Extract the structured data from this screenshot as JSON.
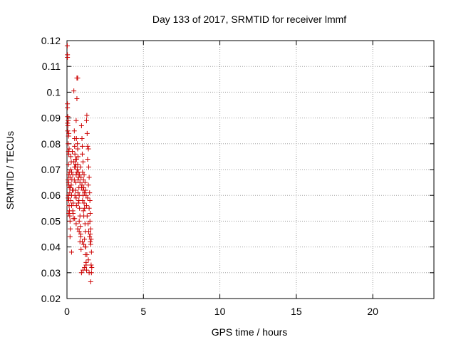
{
  "chart_data": {
    "type": "scatter",
    "title": "Day 133 of 2017, SRMTID for receiver lmmf",
    "xlabel": "GPS time / hours",
    "ylabel": "SRMTID / TECUs",
    "xlim": [
      0,
      24
    ],
    "ylim": [
      0.02,
      0.12
    ],
    "xticks": [
      0,
      5,
      10,
      15,
      20
    ],
    "yticks": [
      0.02,
      0.03,
      0.04,
      0.05,
      0.06,
      0.07,
      0.08,
      0.09,
      0.1,
      0.11,
      0.12
    ],
    "xtick_labels": [
      "0",
      "5",
      "10",
      "15",
      "20"
    ],
    "ytick_labels": [
      "0.02",
      "0.03",
      "0.04",
      "0.05",
      "0.06",
      "0.07",
      "0.08",
      "0.09",
      "0.1",
      "0.11",
      "0.12"
    ],
    "grid": true,
    "marker": "plus",
    "marker_color": "#cc0000",
    "series": [
      {
        "points": [
          [
            0.02,
            0.118
          ],
          [
            0.03,
            0.1145
          ],
          [
            0.03,
            0.1135
          ],
          [
            0.03,
            0.0955
          ],
          [
            0.03,
            0.094
          ],
          [
            0.05,
            0.0905
          ],
          [
            0.04,
            0.088
          ],
          [
            0.06,
            0.087
          ],
          [
            0.08,
            0.089
          ],
          [
            0.05,
            0.085
          ],
          [
            0.1,
            0.083
          ],
          [
            0.12,
            0.084
          ],
          [
            0.08,
            0.08
          ],
          [
            0.1,
            0.077
          ],
          [
            0.12,
            0.076
          ],
          [
            0.14,
            0.078
          ],
          [
            0.1,
            0.072
          ],
          [
            0.12,
            0.068
          ],
          [
            0.08,
            0.066
          ],
          [
            0.1,
            0.065
          ],
          [
            0.12,
            0.064
          ],
          [
            0.15,
            0.063
          ],
          [
            0.1,
            0.06
          ],
          [
            0.12,
            0.058
          ],
          [
            0.08,
            0.059
          ],
          [
            0.14,
            0.056
          ],
          [
            0.12,
            0.053
          ],
          [
            0.16,
            0.054
          ],
          [
            0.18,
            0.052
          ],
          [
            0.2,
            0.05
          ],
          [
            0.22,
            0.047
          ],
          [
            0.2,
            0.044
          ],
          [
            0.3,
            0.038
          ],
          [
            0.22,
            0.063
          ],
          [
            0.25,
            0.07
          ],
          [
            0.28,
            0.073
          ],
          [
            0.3,
            0.069
          ],
          [
            0.32,
            0.066
          ],
          [
            0.35,
            0.062
          ],
          [
            0.3,
            0.06
          ],
          [
            0.4,
            0.057
          ],
          [
            0.38,
            0.054
          ],
          [
            0.42,
            0.051
          ],
          [
            0.45,
            0.1005
          ],
          [
            0.48,
            0.085
          ],
          [
            0.5,
            0.082
          ],
          [
            0.5,
            0.079
          ],
          [
            0.52,
            0.076
          ],
          [
            0.55,
            0.074
          ],
          [
            0.5,
            0.071
          ],
          [
            0.6,
            0.068
          ],
          [
            0.58,
            0.065
          ],
          [
            0.55,
            0.062
          ],
          [
            0.6,
            0.059
          ],
          [
            0.62,
            0.056
          ],
          [
            0.65,
            0.1055
          ],
          [
            0.7,
            0.1055
          ],
          [
            0.65,
            0.0975
          ],
          [
            0.6,
            0.089
          ],
          [
            0.62,
            0.082
          ],
          [
            0.68,
            0.08
          ],
          [
            0.7,
            0.078
          ],
          [
            0.72,
            0.075
          ],
          [
            0.7,
            0.072
          ],
          [
            0.75,
            0.069
          ],
          [
            0.72,
            0.066
          ],
          [
            0.78,
            0.063
          ],
          [
            0.8,
            0.06
          ],
          [
            0.75,
            0.057
          ],
          [
            0.82,
            0.055
          ],
          [
            0.85,
            0.052
          ],
          [
            0.8,
            0.05
          ],
          [
            0.88,
            0.048
          ],
          [
            0.9,
            0.045
          ],
          [
            0.85,
            0.042
          ],
          [
            0.92,
            0.039
          ],
          [
            0.95,
            0.087
          ],
          [
            0.98,
            0.082
          ],
          [
            1.0,
            0.079
          ],
          [
            1.0,
            0.076
          ],
          [
            1.05,
            0.073
          ],
          [
            1.02,
            0.069
          ],
          [
            1.08,
            0.066
          ],
          [
            1.1,
            0.063
          ],
          [
            1.05,
            0.06
          ],
          [
            1.12,
            0.057
          ],
          [
            1.15,
            0.055
          ],
          [
            1.1,
            0.052
          ],
          [
            1.18,
            0.049
          ],
          [
            1.2,
            0.046
          ],
          [
            1.15,
            0.043
          ],
          [
            1.22,
            0.04
          ],
          [
            1.2,
            0.037
          ],
          [
            1.25,
            0.034
          ],
          [
            1.28,
            0.031
          ],
          [
            1.3,
            0.091
          ],
          [
            1.28,
            0.089
          ],
          [
            1.32,
            0.084
          ],
          [
            1.35,
            0.079
          ],
          [
            1.4,
            0.078
          ],
          [
            1.35,
            0.074
          ],
          [
            1.42,
            0.071
          ],
          [
            1.45,
            0.067
          ],
          [
            1.4,
            0.064
          ],
          [
            1.48,
            0.061
          ],
          [
            1.5,
            0.058
          ],
          [
            1.45,
            0.055
          ],
          [
            1.52,
            0.053
          ],
          [
            1.5,
            0.05
          ],
          [
            1.55,
            0.047
          ],
          [
            1.52,
            0.045
          ],
          [
            1.58,
            0.043
          ],
          [
            1.55,
            0.041
          ],
          [
            1.6,
            0.038
          ],
          [
            1.58,
            0.033
          ],
          [
            1.62,
            0.032
          ],
          [
            1.6,
            0.03
          ],
          [
            1.55,
            0.0265
          ],
          [
            0.25,
            0.075
          ],
          [
            0.35,
            0.077
          ],
          [
            0.45,
            0.073
          ],
          [
            0.55,
            0.071
          ],
          [
            0.65,
            0.069
          ],
          [
            0.75,
            0.067
          ],
          [
            0.85,
            0.065
          ],
          [
            0.95,
            0.063
          ],
          [
            1.05,
            0.062
          ],
          [
            1.15,
            0.061
          ],
          [
            1.25,
            0.06
          ],
          [
            1.35,
            0.059
          ],
          [
            0.3,
            0.056
          ],
          [
            0.4,
            0.053
          ],
          [
            0.5,
            0.051
          ],
          [
            0.6,
            0.049
          ],
          [
            0.7,
            0.047
          ],
          [
            0.8,
            0.046
          ],
          [
            0.9,
            0.044
          ],
          [
            1.0,
            0.042
          ],
          [
            1.1,
            0.041
          ],
          [
            1.2,
            0.04
          ],
          [
            1.3,
            0.037
          ],
          [
            1.4,
            0.035
          ],
          [
            0.95,
            0.03
          ],
          [
            1.05,
            0.031
          ],
          [
            1.15,
            0.032
          ],
          [
            1.25,
            0.033
          ],
          [
            1.45,
            0.03
          ],
          [
            0.2,
            0.067
          ],
          [
            0.15,
            0.069
          ],
          [
            0.18,
            0.061
          ],
          [
            0.25,
            0.058
          ],
          [
            0.28,
            0.064
          ],
          [
            0.38,
            0.068
          ],
          [
            0.42,
            0.062
          ],
          [
            0.48,
            0.066
          ],
          [
            0.52,
            0.06
          ],
          [
            0.58,
            0.072
          ],
          [
            0.62,
            0.074
          ],
          [
            0.68,
            0.07
          ],
          [
            0.72,
            0.061
          ],
          [
            0.78,
            0.058
          ],
          [
            0.82,
            0.068
          ],
          [
            0.88,
            0.071
          ],
          [
            0.92,
            0.067
          ],
          [
            0.98,
            0.064
          ],
          [
            1.02,
            0.058
          ],
          [
            1.08,
            0.054
          ],
          [
            1.12,
            0.068
          ],
          [
            1.18,
            0.065
          ],
          [
            1.22,
            0.062
          ],
          [
            1.28,
            0.056
          ],
          [
            1.32,
            0.052
          ],
          [
            1.38,
            0.049
          ],
          [
            1.42,
            0.046
          ],
          [
            1.48,
            0.044
          ],
          [
            1.52,
            0.042
          ]
        ]
      }
    ]
  }
}
